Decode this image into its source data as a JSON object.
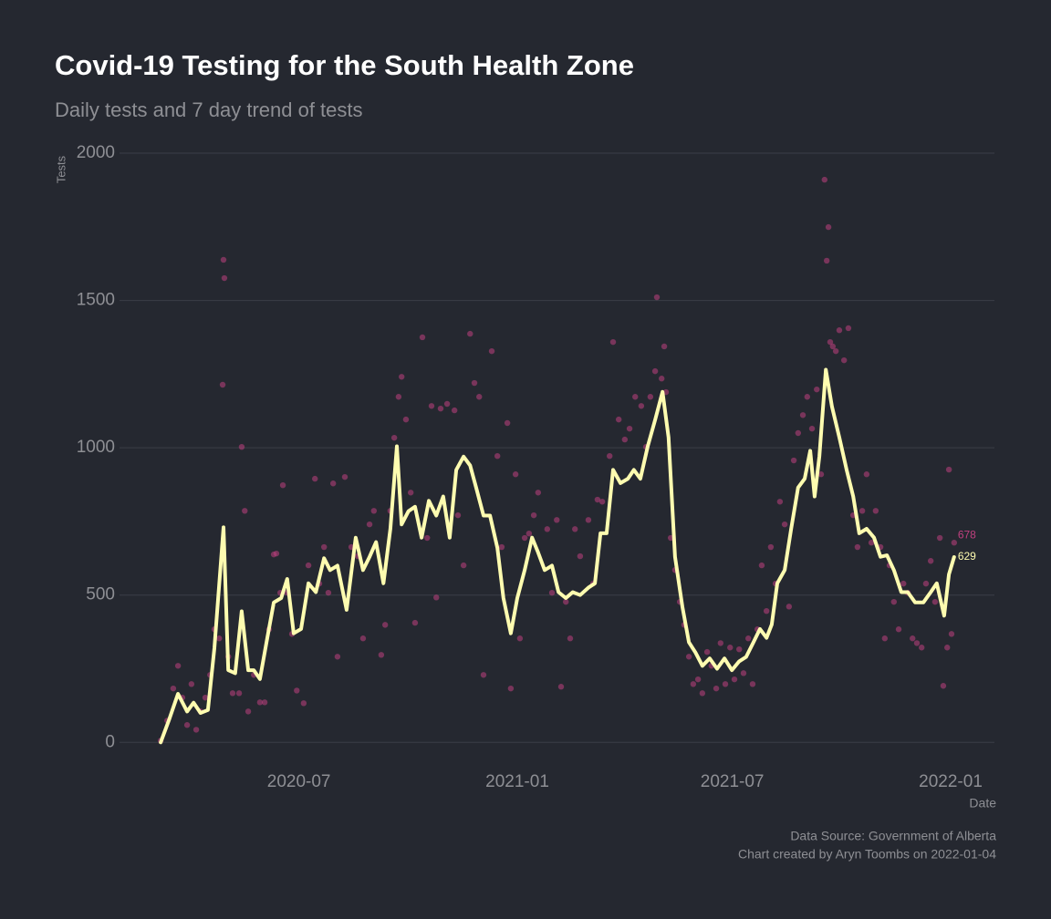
{
  "chart_data": {
    "type": "scatter",
    "title": "Covid-19 Testing for the South Health Zone",
    "subtitle": "Daily tests and 7 day trend of tests",
    "x_label": "Date",
    "y_label": "Tests",
    "caption": [
      "Data Source: Government of Alberta",
      "Chart created by Aryn Toombs on 2022-01-04"
    ],
    "xlim": [
      2020.082,
      2022.101
    ],
    "ylim": [
      -95,
      2000
    ],
    "xticks": [
      {
        "value": 2020.496,
        "label": "2020-07"
      },
      {
        "value": 2021.0,
        "label": "2021-01"
      },
      {
        "value": 2021.496,
        "label": "2021-07"
      },
      {
        "value": 2022.0,
        "label": "2022-01"
      }
    ],
    "yticks": [
      0,
      500,
      1000,
      1500,
      2000
    ],
    "grid": true,
    "series": [
      {
        "type": "scatter",
        "color": "#c0407f",
        "x": [
          2020.177,
          2020.192,
          2020.206,
          2020.217,
          2020.227,
          2020.238,
          2020.248,
          2020.259,
          2020.269,
          2020.28,
          2020.291,
          2020.301,
          2020.312,
          2020.322,
          2020.324,
          2020.32,
          2020.333,
          2020.343,
          2020.358,
          2020.364,
          2020.371,
          2020.379,
          2020.392,
          2020.406,
          2020.417,
          2020.427,
          2020.438,
          2020.444,
          2020.453,
          2020.459,
          2020.469,
          2020.48,
          2020.491,
          2020.507,
          2020.518,
          2020.533,
          2020.543,
          2020.554,
          2020.564,
          2020.575,
          2020.585,
          2020.602,
          2020.617,
          2020.632,
          2020.644,
          2020.659,
          2020.669,
          2020.686,
          2020.695,
          2020.707,
          2020.716,
          2020.726,
          2020.733,
          2020.743,
          2020.754,
          2020.764,
          2020.781,
          2020.792,
          2020.802,
          2020.813,
          2020.823,
          2020.838,
          2020.855,
          2020.863,
          2020.876,
          2020.891,
          2020.901,
          2020.912,
          2020.922,
          2020.941,
          2020.954,
          2020.964,
          2020.977,
          2020.985,
          2020.996,
          2021.006,
          2021.017,
          2021.027,
          2021.038,
          2021.048,
          2021.069,
          2021.08,
          2021.091,
          2021.101,
          2021.112,
          2021.122,
          2021.133,
          2021.145,
          2021.164,
          2021.175,
          2021.185,
          2021.196,
          2021.213,
          2021.221,
          2021.234,
          2021.248,
          2021.259,
          2021.272,
          2021.286,
          2021.297,
          2021.307,
          2021.318,
          2021.322,
          2021.333,
          2021.339,
          2021.343,
          2021.354,
          2021.364,
          2021.375,
          2021.385,
          2021.396,
          2021.406,
          2021.417,
          2021.427,
          2021.438,
          2021.448,
          2021.459,
          2021.469,
          2021.48,
          2021.491,
          2021.501,
          2021.512,
          2021.522,
          2021.533,
          2021.543,
          2021.554,
          2021.564,
          2021.575,
          2021.585,
          2021.596,
          2021.606,
          2021.617,
          2021.627,
          2021.638,
          2021.648,
          2021.659,
          2021.669,
          2021.68,
          2021.691,
          2021.701,
          2021.709,
          2021.714,
          2021.718,
          2021.722,
          2021.728,
          2021.735,
          2021.743,
          2021.754,
          2021.764,
          2021.775,
          2021.785,
          2021.796,
          2021.806,
          2021.817,
          2021.827,
          2021.838,
          2021.848,
          2021.859,
          2021.869,
          2021.88,
          2021.891,
          2021.901,
          2021.912,
          2021.922,
          2021.933,
          2021.943,
          2021.954,
          2021.964,
          2021.975,
          2021.983,
          2021.992,
          2021.996,
          2022.002,
          2022.008
        ],
        "values": [
          6,
          74,
          183,
          260,
          152,
          59,
          198,
          43,
          105,
          152,
          229,
          384,
          353,
          1638,
          1576,
          1214,
          291,
          167,
          167,
          1003,
          786,
          105,
          229,
          136,
          136,
          384,
          638,
          641,
          508,
          873,
          508,
          368,
          176,
          133,
          601,
          895,
          539,
          663,
          508,
          879,
          291,
          901,
          663,
          632,
          353,
          740,
          786,
          297,
          399,
          786,
          1034,
          1173,
          1241,
          1096,
          848,
          406,
          1375,
          694,
          1142,
          492,
          1133,
          1149,
          1127,
          771,
          601,
          1387,
          1220,
          1173,
          229,
          1328,
          972,
          663,
          1084,
          183,
          910,
          353,
          694,
          709,
          771,
          848,
          724,
          508,
          755,
          189,
          477,
          353,
          724,
          632,
          755,
          539,
          824,
          817,
          972,
          1359,
          1096,
          1028,
          1065,
          1173,
          1142,
          1003,
          1173,
          1260,
          1511,
          1235,
          1344,
          1189,
          694,
          585,
          477,
          399,
          291,
          198,
          214,
          167,
          307,
          260,
          183,
          337,
          198,
          322,
          214,
          316,
          235,
          353,
          198,
          384,
          601,
          446,
          663,
          539,
          817,
          740,
          461,
          957,
          1050,
          1111,
          1173,
          1065,
          1198,
          910,
          1910,
          1635,
          1749,
          1359,
          1344,
          1328,
          1399,
          1297,
          1406,
          771,
          663,
          786,
          910,
          678,
          786,
          663,
          353,
          601,
          477,
          384,
          539,
          508,
          353,
          337,
          322,
          539,
          616,
          477,
          694,
          192,
          322,
          926,
          368,
          678
        ]
      },
      {
        "type": "line",
        "color": "#fefcb0",
        "x": [
          2020.177,
          2020.196,
          2020.217,
          2020.238,
          2020.253,
          2020.269,
          2020.286,
          2020.301,
          2020.322,
          2020.333,
          2020.349,
          2020.364,
          2020.379,
          2020.392,
          2020.406,
          2020.423,
          2020.438,
          2020.455,
          2020.469,
          2020.484,
          2020.501,
          2020.518,
          2020.535,
          2020.554,
          2020.568,
          2020.585,
          2020.606,
          2020.627,
          2020.644,
          2020.659,
          2020.674,
          2020.691,
          2020.707,
          2020.722,
          2020.733,
          2020.749,
          2020.764,
          2020.779,
          2020.796,
          2020.813,
          2020.829,
          2020.844,
          2020.859,
          2020.876,
          2020.891,
          2020.905,
          2020.922,
          2020.937,
          2020.954,
          2020.968,
          2020.985,
          2021.0,
          2021.017,
          2021.034,
          2021.048,
          2021.063,
          2021.08,
          2021.095,
          2021.112,
          2021.128,
          2021.145,
          2021.164,
          2021.179,
          2021.192,
          2021.206,
          2021.221,
          2021.238,
          2021.255,
          2021.269,
          2021.284,
          2021.301,
          2021.318,
          2021.335,
          2021.349,
          2021.364,
          2021.381,
          2021.396,
          2021.411,
          2021.427,
          2021.444,
          2021.461,
          2021.478,
          2021.495,
          2021.512,
          2021.528,
          2021.545,
          2021.56,
          2021.575,
          2021.587,
          2021.6,
          2021.617,
          2021.632,
          2021.648,
          2021.663,
          2021.676,
          2021.686,
          2021.697,
          2021.712,
          2021.726,
          2021.743,
          2021.76,
          2021.775,
          2021.789,
          2021.806,
          2021.823,
          2021.838,
          2021.853,
          2021.869,
          2021.886,
          2021.901,
          2021.918,
          2021.937,
          2021.954,
          2021.968,
          2021.985,
          2021.996,
          2022.008
        ],
        "values": [
          0,
          75,
          165,
          105,
          135,
          100,
          110,
          320,
          730,
          245,
          235,
          445,
          245,
          245,
          215,
          355,
          475,
          490,
          555,
          370,
          385,
          540,
          510,
          625,
          585,
          600,
          450,
          695,
          585,
          630,
          680,
          540,
          725,
          1005,
          740,
          785,
          800,
          695,
          820,
          770,
          835,
          695,
          925,
          970,
          940,
          865,
          770,
          770,
          660,
          490,
          370,
          490,
          585,
          695,
          645,
          585,
          600,
          510,
          490,
          510,
          500,
          525,
          540,
          710,
          710,
          925,
          880,
          895,
          925,
          895,
          1005,
          1095,
          1190,
          1035,
          630,
          460,
          340,
          305,
          260,
          285,
          250,
          285,
          245,
          275,
          290,
          340,
          385,
          355,
          400,
          540,
          585,
          725,
          865,
          895,
          990,
          835,
          970,
          1265,
          1140,
          1035,
          925,
          835,
          710,
          725,
          695,
          630,
          635,
          585,
          510,
          510,
          475,
          475,
          510,
          540,
          430,
          570,
          629
        ]
      }
    ]
  }
}
